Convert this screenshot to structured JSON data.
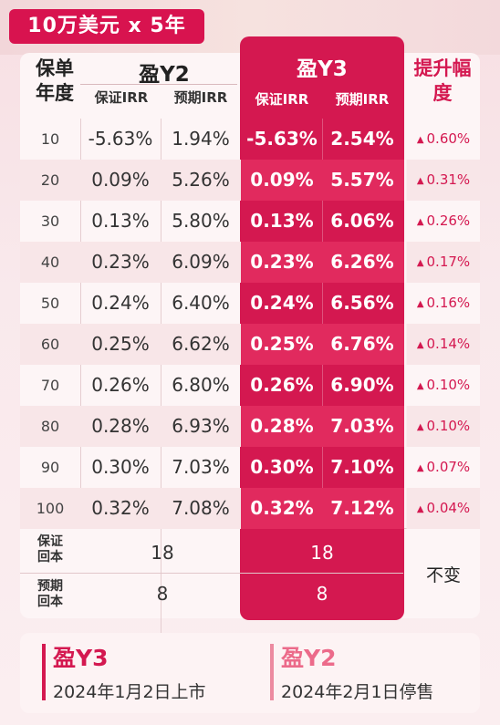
{
  "title_tag": "10万美元 x 5年",
  "header": {
    "year_col": "保单年度",
    "y2_title": "盈Y2",
    "y3_title": "盈Y3",
    "guaranteed_irr": "保证IRR",
    "expected_irr": "预期IRR",
    "increase": "提升幅度"
  },
  "rows": [
    {
      "year": "10",
      "y2_guaranteed": "-5.63%",
      "y2_expected": "1.94%",
      "y3_guaranteed": "-5.63%",
      "y3_expected": "2.54%",
      "increase": "0.60%"
    },
    {
      "year": "20",
      "y2_guaranteed": "0.09%",
      "y2_expected": "5.26%",
      "y3_guaranteed": "0.09%",
      "y3_expected": "5.57%",
      "increase": "0.31%"
    },
    {
      "year": "30",
      "y2_guaranteed": "0.13%",
      "y2_expected": "5.80%",
      "y3_guaranteed": "0.13%",
      "y3_expected": "6.06%",
      "increase": "0.26%"
    },
    {
      "year": "40",
      "y2_guaranteed": "0.23%",
      "y2_expected": "6.09%",
      "y3_guaranteed": "0.23%",
      "y3_expected": "6.26%",
      "increase": "0.17%"
    },
    {
      "year": "50",
      "y2_guaranteed": "0.24%",
      "y2_expected": "6.40%",
      "y3_guaranteed": "0.24%",
      "y3_expected": "6.56%",
      "increase": "0.16%"
    },
    {
      "year": "60",
      "y2_guaranteed": "0.25%",
      "y2_expected": "6.62%",
      "y3_guaranteed": "0.25%",
      "y3_expected": "6.76%",
      "increase": "0.14%"
    },
    {
      "year": "70",
      "y2_guaranteed": "0.26%",
      "y2_expected": "6.80%",
      "y3_guaranteed": "0.26%",
      "y3_expected": "6.90%",
      "increase": "0.10%"
    },
    {
      "year": "80",
      "y2_guaranteed": "0.28%",
      "y2_expected": "6.93%",
      "y3_guaranteed": "0.28%",
      "y3_expected": "7.03%",
      "increase": "0.10%"
    },
    {
      "year": "90",
      "y2_guaranteed": "0.30%",
      "y2_expected": "7.03%",
      "y3_guaranteed": "0.30%",
      "y3_expected": "7.10%",
      "increase": "0.07%"
    },
    {
      "year": "100",
      "y2_guaranteed": "0.32%",
      "y2_expected": "7.08%",
      "y3_guaranteed": "0.32%",
      "y3_expected": "7.12%",
      "increase": "0.04%"
    }
  ],
  "payback": {
    "guaranteed_label_1": "保证",
    "guaranteed_label_2": "回本",
    "expected_label_1": "预期",
    "expected_label_2": "回本",
    "y2_guaranteed": "18",
    "y3_guaranteed": "18",
    "y2_expected": "8",
    "y3_expected": "8",
    "change": "不变"
  },
  "footer": {
    "y3_name": "盈Y3",
    "y3_date": "2024年1月2日上市",
    "y2_name": "盈Y2",
    "y2_date": "2024年2月1日停售"
  },
  "colors": {
    "accent": "#d41850",
    "accent_light": "#ec6a8a"
  },
  "icons": {
    "increase_marker": "up-triangle-icon"
  }
}
